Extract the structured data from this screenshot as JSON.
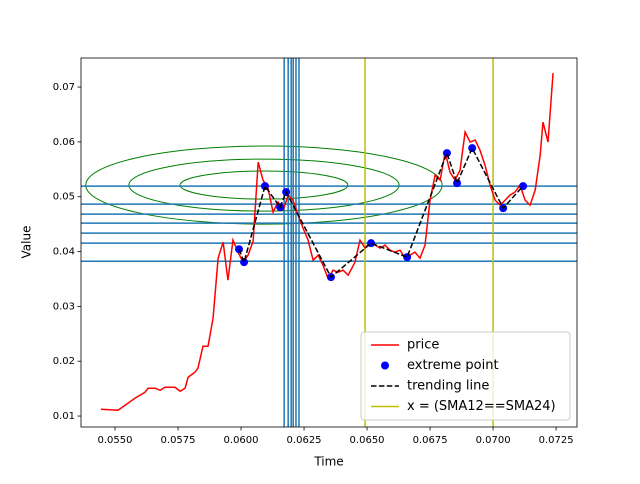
{
  "chart_data": {
    "type": "line",
    "x_label": "Time",
    "y_label": "Value",
    "xlim": [
      0.05365,
      0.07333
    ],
    "ylim": [
      0.008,
      0.0753
    ],
    "xticks": [
      {
        "value": 0.055,
        "label": "0.0550"
      },
      {
        "value": 0.0575,
        "label": "0.0575"
      },
      {
        "value": 0.06,
        "label": "0.0600"
      },
      {
        "value": 0.0625,
        "label": "0.0625"
      },
      {
        "value": 0.065,
        "label": "0.0650"
      },
      {
        "value": 0.0675,
        "label": "0.0675"
      },
      {
        "value": 0.07,
        "label": "0.0700"
      },
      {
        "value": 0.0725,
        "label": "0.0725"
      }
    ],
    "yticks": [
      0.01,
      0.02,
      0.03,
      0.04,
      0.05,
      0.06,
      0.07
    ],
    "legend_loc": "lower right",
    "series": [
      {
        "name": "price",
        "color": "#ff0000",
        "style": "line",
        "x": [
          0.05444,
          0.05512,
          0.0554,
          0.05579,
          0.05619,
          0.05631,
          0.05659,
          0.05679,
          0.05698,
          0.05738,
          0.05758,
          0.05778,
          0.0579,
          0.05817,
          0.05829,
          0.05849,
          0.05869,
          0.05889,
          0.05909,
          0.05929,
          0.05948,
          0.05968,
          0.05988,
          0.06008,
          0.06028,
          0.06048,
          0.06068,
          0.06087,
          0.06107,
          0.06127,
          0.06147,
          0.06167,
          0.06187,
          0.06206,
          0.06222,
          0.06246,
          0.06266,
          0.06286,
          0.06306,
          0.06325,
          0.06345,
          0.06365,
          0.06385,
          0.06405,
          0.06425,
          0.06452,
          0.06472,
          0.06492,
          0.06512,
          0.06532,
          0.06552,
          0.06571,
          0.06591,
          0.06611,
          0.06631,
          0.06651,
          0.06671,
          0.0669,
          0.0671,
          0.0673,
          0.0675,
          0.0677,
          0.0679,
          0.0681,
          0.06829,
          0.06849,
          0.06869,
          0.06889,
          0.06909,
          0.06929,
          0.06948,
          0.06968,
          0.06988,
          0.07008,
          0.07028,
          0.07048,
          0.07067,
          0.07087,
          0.07107,
          0.07127,
          0.07147,
          0.07167,
          0.07187,
          0.07198,
          0.07218,
          0.07238
        ],
        "values": [
          0.01124,
          0.01105,
          0.01197,
          0.01325,
          0.01434,
          0.01507,
          0.01507,
          0.0147,
          0.01525,
          0.01525,
          0.01452,
          0.01507,
          0.01708,
          0.01799,
          0.01872,
          0.02273,
          0.02273,
          0.02784,
          0.03879,
          0.04171,
          0.03478,
          0.04208,
          0.03989,
          0.03806,
          0.03934,
          0.0419,
          0.05631,
          0.05303,
          0.05157,
          0.04719,
          0.04901,
          0.04755,
          0.05029,
          0.04938,
          0.04719,
          0.04427,
          0.04208,
          0.03843,
          0.03934,
          0.03752,
          0.03514,
          0.0366,
          0.03624,
          0.0366,
          0.03569,
          0.03806,
          0.04208,
          0.04062,
          0.04171,
          0.04117,
          0.04062,
          0.04117,
          0.04025,
          0.03989,
          0.04025,
          0.03879,
          0.03934,
          0.03989,
          0.03879,
          0.04117,
          0.04938,
          0.05394,
          0.05303,
          0.05814,
          0.05449,
          0.05303,
          0.05485,
          0.06179,
          0.05996,
          0.06033,
          0.0585,
          0.05577,
          0.05212,
          0.04938,
          0.04847,
          0.04938,
          0.05029,
          0.05084,
          0.05212,
          0.04938,
          0.04847,
          0.0512,
          0.05759,
          0.06361,
          0.05996,
          0.07256
        ]
      },
      {
        "name": "extreme point",
        "color": "#0000ff",
        "style": "marker",
        "x": [
          0.05992,
          0.06012,
          0.06095,
          0.06155,
          0.06179,
          0.06357,
          0.06516,
          0.06659,
          0.06817,
          0.06857,
          0.06917,
          0.0704,
          0.07119
        ],
        "values": [
          0.04043,
          0.03806,
          0.05193,
          0.0481,
          0.05084,
          0.03533,
          0.04153,
          0.03898,
          0.05796,
          0.05248,
          0.05887,
          0.04792,
          0.05193
        ]
      },
      {
        "name": "trending line",
        "color": "#000000",
        "style": "dashed",
        "x": [
          0.05992,
          0.06012,
          0.06095,
          0.06155,
          0.06179,
          0.06357,
          0.06516,
          0.06659,
          0.06817,
          0.06857,
          0.06917,
          0.0704,
          0.07119
        ],
        "values": [
          0.04043,
          0.03806,
          0.05193,
          0.0481,
          0.05084,
          0.03533,
          0.04153,
          0.03898,
          0.05796,
          0.05248,
          0.05887,
          0.04792,
          0.05193
        ]
      }
    ],
    "sma_cross": {
      "name": "x = (SMA12==SMA24)",
      "color": "#bfbf00",
      "x": [
        0.06492,
        0.07
      ]
    },
    "hlines": {
      "color": "#1f77b4",
      "values": [
        0.05193,
        0.04865,
        0.04683,
        0.04518,
        0.04336,
        0.04153,
        0.03824
      ]
    },
    "vlines": {
      "color": "#1f77b4",
      "x": [
        0.06171,
        0.06187,
        0.06199,
        0.06207,
        0.06218,
        0.0623
      ]
    },
    "ellipses": {
      "color": "#008000",
      "items": [
        {
          "cx": 0.06091,
          "cy": 0.05212,
          "width": 0.01414,
          "height": 0.01424
        },
        {
          "cx": 0.06091,
          "cy": 0.05212,
          "width": 0.01072,
          "height": 0.00948
        },
        {
          "cx": 0.06091,
          "cy": 0.05212,
          "width": 0.00666,
          "height": 0.00512
        }
      ]
    }
  }
}
